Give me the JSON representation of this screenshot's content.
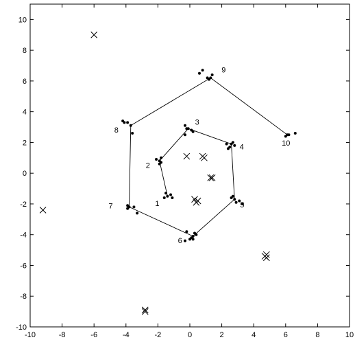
{
  "chart_data": {
    "type": "scatter",
    "title": "",
    "xlabel": "",
    "ylabel": "",
    "xlim": [
      -10,
      10
    ],
    "ylim": [
      -10,
      11
    ],
    "xticks": [
      -10,
      -8,
      -6,
      -4,
      -2,
      0,
      2,
      4,
      6,
      8,
      10
    ],
    "yticks": [
      -10,
      -8,
      -6,
      -4,
      -2,
      0,
      2,
      4,
      6,
      8,
      10
    ],
    "grid": false,
    "colors": {
      "axes": "#000000",
      "points": "#000000",
      "path": "#000000"
    },
    "path": {
      "labels": [
        "1",
        "2",
        "3",
        "4",
        "5",
        "6",
        "7",
        "8",
        "9",
        "10"
      ],
      "x": [
        -1.4,
        -1.9,
        -0.1,
        2.6,
        2.8,
        0.2,
        -3.8,
        -3.7,
        1.3,
        6.1
      ],
      "y": [
        -1.5,
        0.8,
        2.9,
        1.9,
        -1.7,
        -4.1,
        -2.2,
        3.1,
        6.2,
        2.5
      ]
    },
    "clusters": {
      "x": [
        -1.4,
        -1.2,
        -1.5,
        -1.1,
        -1.6,
        -1.9,
        -1.8,
        -2.1,
        -1.8,
        -1.9,
        -0.1,
        0.1,
        -0.3,
        0.2,
        -0.2,
        -0.3,
        2.6,
        2.4,
        2.7,
        2.3,
        2.8,
        2.5,
        2.8,
        2.9,
        2.6,
        3.1,
        3.3,
        2.7,
        0.2,
        0.3,
        0.0,
        0.1,
        0.4,
        -0.3,
        -0.2,
        0.2,
        -3.8,
        -3.9,
        -3.5,
        -3.9,
        -3.3,
        -3.7,
        -3.9,
        -4.2,
        -4.1,
        -3.6,
        1.3,
        1.1,
        1.4,
        0.8,
        0.6,
        1.2,
        6.1,
        6.2,
        6.0,
        6.6
      ],
      "y": [
        -1.5,
        -1.4,
        -1.3,
        -1.6,
        -1.6,
        0.8,
        0.7,
        0.9,
        1.0,
        0.6,
        2.9,
        2.8,
        3.1,
        2.7,
        2.9,
        2.5,
        1.9,
        1.6,
        2.0,
        1.9,
        1.8,
        1.7,
        -1.7,
        -1.9,
        -1.6,
        -1.8,
        -2.0,
        -1.5,
        -4.1,
        -3.9,
        -4.3,
        -4.2,
        -4.0,
        -4.4,
        -3.8,
        -4.3,
        -2.2,
        -2.3,
        -2.2,
        -2.1,
        -2.6,
        3.1,
        3.3,
        3.4,
        3.3,
        2.6,
        6.2,
        6.2,
        6.4,
        6.7,
        6.5,
        6.1,
        2.5,
        2.5,
        2.4,
        2.6
      ]
    },
    "crosses": {
      "x": [
        -6.0,
        -9.2,
        -2.8,
        -2.8,
        4.8,
        4.8,
        4.7,
        -0.2,
        0.9,
        0.8,
        1.4,
        1.3,
        0.3,
        0.5,
        0.4
      ],
      "y": [
        9.0,
        -2.4,
        -8.9,
        -9.0,
        -5.3,
        -5.5,
        -5.4,
        1.1,
        1.0,
        1.1,
        -0.3,
        -0.3,
        -1.7,
        -1.8,
        -1.9
      ]
    }
  }
}
